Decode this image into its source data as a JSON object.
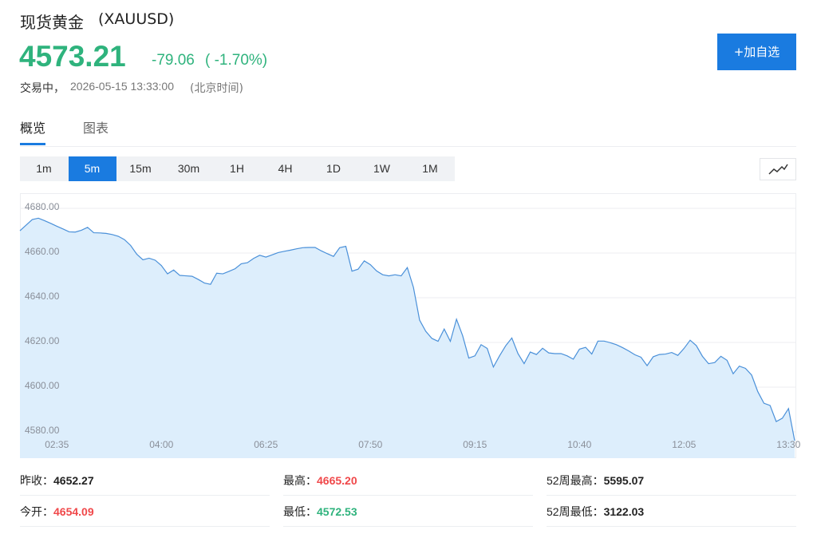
{
  "header": {
    "name": "现货黄金",
    "symbol": "(XAUUSD)",
    "price": "4573.21",
    "change": "-79.06",
    "change_percent": "( -1.70%)",
    "status": "交易中，",
    "timestamp": "2026-05-15 13:33:00",
    "timezone": "(北京时间)",
    "watch_button": "+加自选"
  },
  "tabs": [
    "概览",
    "图表"
  ],
  "active_tab": 0,
  "intervals": [
    "1m",
    "5m",
    "15m",
    "30m",
    "1H",
    "4H",
    "1D",
    "1W",
    "1M"
  ],
  "active_interval": 1,
  "chart_data": {
    "type": "area",
    "color": "#4a90d9",
    "fill": "#ddeefc",
    "categories": [
      null,
      null,
      null,
      null,
      null,
      null,
      "02:35",
      null,
      null,
      null,
      null,
      null,
      null,
      null,
      null,
      null,
      null,
      null,
      null,
      null,
      null,
      null,
      null,
      "04:00",
      null,
      null,
      null,
      null,
      null,
      null,
      null,
      null,
      null,
      null,
      null,
      null,
      null,
      null,
      null,
      null,
      "06:25",
      null,
      null,
      null,
      null,
      null,
      null,
      null,
      null,
      null,
      null,
      null,
      null,
      null,
      null,
      null,
      null,
      "07:50",
      null,
      null,
      null,
      null,
      null,
      null,
      null,
      null,
      null,
      null,
      null,
      null,
      null,
      null,
      null,
      null,
      "09:15",
      null,
      null,
      null,
      null,
      null,
      null,
      null,
      null,
      null,
      null,
      null,
      null,
      null,
      null,
      null,
      null,
      "10:40",
      null,
      null,
      null,
      null,
      null,
      null,
      null,
      null,
      null,
      null,
      null,
      null,
      null,
      null,
      null,
      null,
      "12:05",
      null,
      null,
      null,
      null,
      null,
      null,
      null,
      null,
      null,
      null,
      null,
      null,
      null,
      null,
      null,
      null,
      "13:30",
      null
    ],
    "values": [
      4670,
      4672.5,
      4675,
      4675.6,
      4674.5,
      4673.3,
      4672,
      4670.8,
      4669.5,
      4669.4,
      4670.2,
      4671.5,
      4669.1,
      4669,
      4668.8,
      4668.3,
      4667.5,
      4666,
      4663.4,
      4659.5,
      4657,
      4657.7,
      4656.8,
      4654.4,
      4650.7,
      4652.4,
      4650,
      4649.8,
      4649.6,
      4648.2,
      4646.6,
      4646,
      4651,
      4650.7,
      4651.8,
      4653,
      4655.2,
      4655.7,
      4657.6,
      4659,
      4658.2,
      4659.2,
      4660.2,
      4660.8,
      4661.3,
      4661.9,
      4662.4,
      4662.5,
      4662.5,
      4661,
      4659.7,
      4658.5,
      4662.4,
      4663,
      4651.9,
      4652.8,
      4656.5,
      4654.8,
      4652,
      4650.3,
      4649.8,
      4650.3,
      4649.8,
      4653.5,
      4644.6,
      4630,
      4625,
      4621.8,
      4620.5,
      4626,
      4620.5,
      4630.4,
      4623,
      4613,
      4614,
      4619,
      4617.3,
      4609,
      4614,
      4618.5,
      4622,
      4615,
      4610.5,
      4615.7,
      4614.6,
      4617.4,
      4615.3,
      4615,
      4615,
      4614,
      4612.5,
      4617,
      4617.8,
      4614.8,
      4620.6,
      4620.6,
      4619.9,
      4619,
      4617.7,
      4616.2,
      4614.5,
      4613.4,
      4609.6,
      4613.6,
      4614.6,
      4614.8,
      4615.5,
      4614.2,
      4617.3,
      4621,
      4618.6,
      4613.8,
      4610.5,
      4611,
      4613.8,
      4612,
      4606,
      4609.4,
      4608.4,
      4605.4,
      4598,
      4592.8,
      4591.8,
      4584.6,
      4586.1,
      4590.4,
      4576
    ],
    "ylim": [
      4568.2,
      4686.8
    ],
    "yticks": [
      {
        "value": 4580,
        "label": "4580.00"
      },
      {
        "value": 4600,
        "label": "4600.00"
      },
      {
        "value": 4620,
        "label": "4620.00"
      },
      {
        "value": 4640,
        "label": "4640.00"
      },
      {
        "value": 4660,
        "label": "4660.00"
      },
      {
        "value": 4680,
        "label": "4680.00"
      }
    ],
    "grid": true
  },
  "stats": [
    {
      "label": "昨收：",
      "value": "4652.27",
      "color": "#222222"
    },
    {
      "label": "最高：",
      "value": "4665.20",
      "color": "#f0484a"
    },
    {
      "label": "52周最高：",
      "value": "5595.07",
      "color": "#222222"
    },
    {
      "label": "今开：",
      "value": "4654.09",
      "color": "#f0484a"
    },
    {
      "label": "最低：",
      "value": "4572.53",
      "color": "#2fb37d"
    },
    {
      "label": "52周最低：",
      "value": "3122.03",
      "color": "#222222"
    }
  ]
}
